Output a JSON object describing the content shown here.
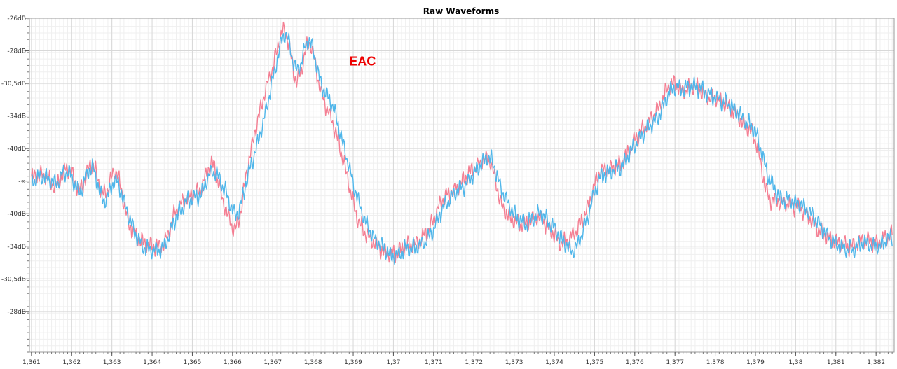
{
  "chart_data": {
    "type": "line",
    "title": "Raw Waveforms",
    "xlabel": "",
    "ylabel": "",
    "xlim": [
      1.36095,
      1.38245
    ],
    "x_ticks": [
      1.361,
      1.362,
      1.363,
      1.364,
      1.365,
      1.366,
      1.367,
      1.368,
      1.369,
      1.37,
      1.371,
      1.372,
      1.373,
      1.374,
      1.375,
      1.376,
      1.377,
      1.378,
      1.379,
      1.38,
      1.381,
      1.382
    ],
    "x_tick_labels": [
      "1,361",
      "1,362",
      "1,363",
      "1,364",
      "1,365",
      "1,366",
      "1,367",
      "1,368",
      "1,369",
      "1,37",
      "1,371",
      "1,372",
      "1,373",
      "1,374",
      "1,375",
      "1,376",
      "1,377",
      "1,378",
      "1,379",
      "1,38",
      "1,381",
      "1,382"
    ],
    "ylim": [
      -1.05,
      1.0
    ],
    "y_ticks": [
      1.0,
      0.8,
      0.6,
      0.4,
      0.2,
      0.0,
      -0.2,
      -0.4,
      -0.6,
      -0.8
    ],
    "y_tick_labels": [
      "-26dB",
      "-28dB",
      "-30,5dB",
      "-34dB",
      "-40dB",
      "-∞",
      "-40dB",
      "-34dB",
      "-30,5dB",
      "-28dB"
    ],
    "grid": true,
    "annotations": [
      {
        "text": "EAC",
        "x": 1.3689,
        "y": 0.71,
        "color": "#ee0000"
      }
    ],
    "series": [
      {
        "color": "#f47f93",
        "x": [
          1.361,
          1.3613,
          1.3616,
          1.3619,
          1.3622,
          1.3625,
          1.3628,
          1.3631,
          1.3634,
          1.3637,
          1.364,
          1.3643,
          1.3646,
          1.3649,
          1.3652,
          1.3655,
          1.3658,
          1.3661,
          1.3664,
          1.3667,
          1.367,
          1.3673,
          1.3676,
          1.3679,
          1.3682,
          1.3685,
          1.3688,
          1.3691,
          1.3694,
          1.3697,
          1.37,
          1.3703,
          1.3706,
          1.3709,
          1.3712,
          1.3715,
          1.3718,
          1.3721,
          1.3724,
          1.3727,
          1.373,
          1.3733,
          1.3736,
          1.3739,
          1.3742,
          1.3745,
          1.3748,
          1.3751,
          1.3754,
          1.3757,
          1.376,
          1.3763,
          1.3766,
          1.3769,
          1.3772,
          1.3775,
          1.3778,
          1.3781,
          1.3784,
          1.3787,
          1.379,
          1.3793,
          1.3796,
          1.3799,
          1.3802,
          1.3805,
          1.3808,
          1.3811,
          1.3814,
          1.3817,
          1.382,
          1.3823,
          1.3824
        ],
        "y": [
          0.02,
          0.04,
          -0.03,
          0.08,
          -0.05,
          0.1,
          -0.08,
          0.06,
          -0.24,
          -0.36,
          -0.4,
          -0.38,
          -0.18,
          -0.1,
          -0.05,
          0.1,
          -0.15,
          -0.28,
          0.12,
          0.45,
          0.7,
          0.92,
          0.62,
          0.85,
          0.55,
          0.35,
          0.08,
          -0.22,
          -0.35,
          -0.42,
          -0.45,
          -0.4,
          -0.38,
          -0.28,
          -0.12,
          -0.06,
          0.02,
          0.1,
          0.12,
          -0.15,
          -0.24,
          -0.26,
          -0.22,
          -0.3,
          -0.38,
          -0.32,
          -0.18,
          0.04,
          0.08,
          0.12,
          0.25,
          0.35,
          0.45,
          0.6,
          0.55,
          0.58,
          0.52,
          0.5,
          0.44,
          0.35,
          0.25,
          -0.08,
          -0.12,
          -0.15,
          -0.18,
          -0.28,
          -0.35,
          -0.38,
          -0.4,
          -0.36,
          -0.38,
          -0.34,
          -0.32
        ]
      },
      {
        "color": "#4fb6ea",
        "x": [
          1.361,
          1.3613,
          1.3616,
          1.3619,
          1.3622,
          1.3625,
          1.3628,
          1.3631,
          1.3634,
          1.3637,
          1.364,
          1.3643,
          1.3646,
          1.3649,
          1.3652,
          1.3655,
          1.3658,
          1.3661,
          1.3664,
          1.3667,
          1.367,
          1.3673,
          1.3676,
          1.3679,
          1.3682,
          1.3685,
          1.3688,
          1.3691,
          1.3694,
          1.3697,
          1.37,
          1.3703,
          1.3706,
          1.3709,
          1.3712,
          1.3715,
          1.3718,
          1.3721,
          1.3724,
          1.3727,
          1.373,
          1.3733,
          1.3736,
          1.3739,
          1.3742,
          1.3745,
          1.3748,
          1.3751,
          1.3754,
          1.3757,
          1.376,
          1.3763,
          1.3766,
          1.3769,
          1.3772,
          1.3775,
          1.3778,
          1.3781,
          1.3784,
          1.3787,
          1.379,
          1.3793,
          1.3796,
          1.3799,
          1.3802,
          1.3805,
          1.3808,
          1.3811,
          1.3814,
          1.3817,
          1.382,
          1.3823,
          1.3824
        ],
        "y": [
          0.0,
          0.03,
          -0.01,
          0.06,
          -0.06,
          0.08,
          -0.12,
          0.0,
          -0.2,
          -0.38,
          -0.42,
          -0.4,
          -0.22,
          -0.12,
          -0.08,
          0.06,
          -0.05,
          -0.2,
          0.05,
          0.3,
          0.62,
          0.9,
          0.68,
          0.86,
          0.6,
          0.45,
          0.18,
          -0.1,
          -0.3,
          -0.4,
          -0.46,
          -0.42,
          -0.4,
          -0.34,
          -0.18,
          -0.08,
          -0.02,
          0.08,
          0.14,
          -0.06,
          -0.2,
          -0.26,
          -0.2,
          -0.26,
          -0.36,
          -0.42,
          -0.24,
          0.0,
          0.06,
          0.1,
          0.22,
          0.32,
          0.4,
          0.56,
          0.57,
          0.58,
          0.54,
          0.5,
          0.46,
          0.38,
          0.3,
          0.05,
          -0.1,
          -0.12,
          -0.16,
          -0.24,
          -0.34,
          -0.4,
          -0.42,
          -0.38,
          -0.4,
          -0.36,
          -0.34
        ]
      }
    ]
  }
}
